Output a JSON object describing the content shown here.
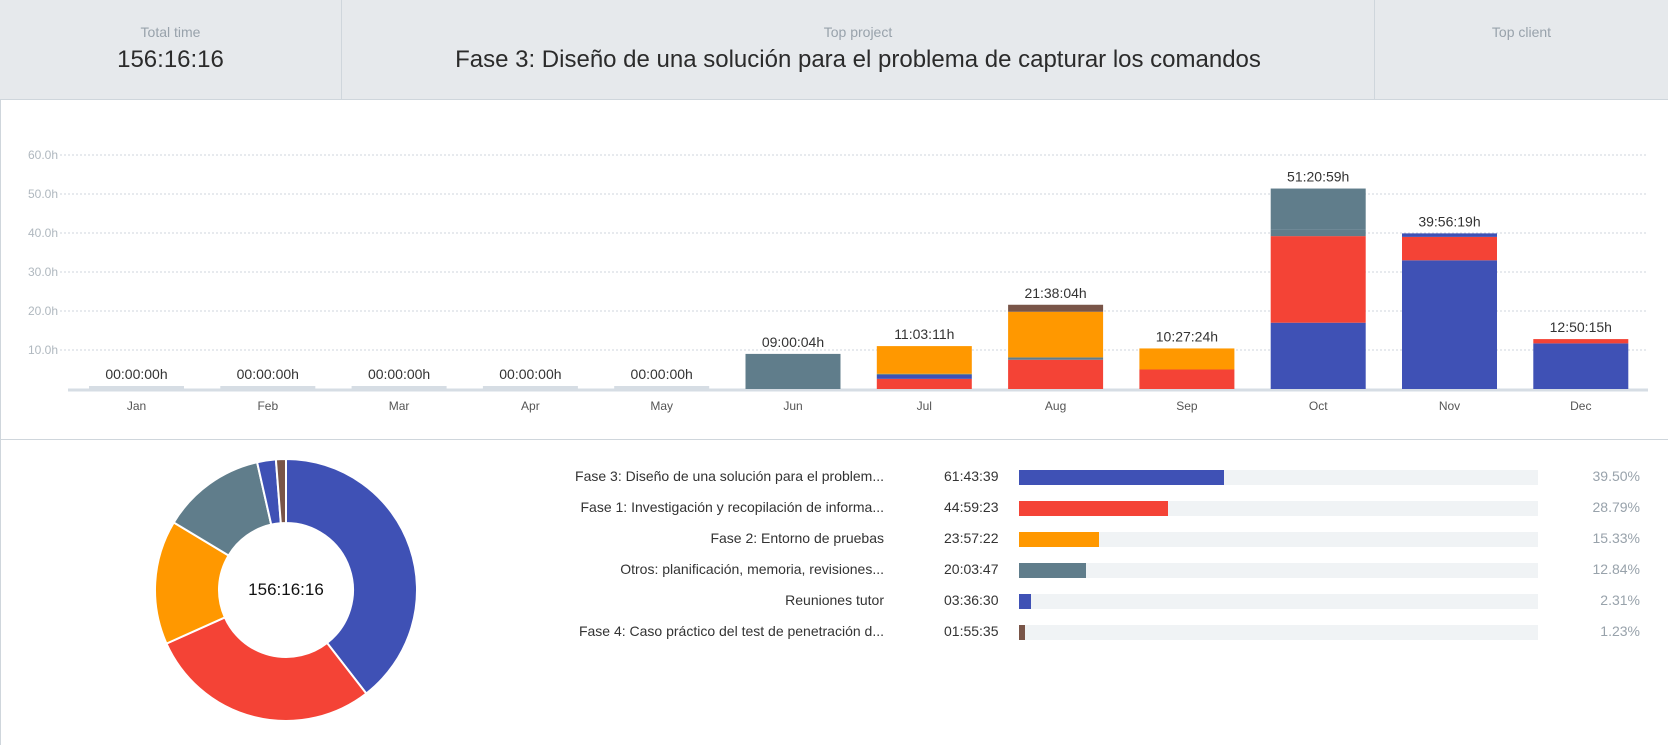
{
  "summary": {
    "total_label": "Total time",
    "total_value": "156:16:16",
    "project_label": "Top project",
    "project_value": "Fase 3: Diseño de una solución para el problema de capturar los comandos",
    "client_label": "Top client",
    "client_value": ""
  },
  "colors": {
    "blue": "#3f51b5",
    "red": "#f44336",
    "orange": "#ff9800",
    "slate": "#607d8b",
    "brown": "#795548",
    "empty": "#d6dde4"
  },
  "chart_data": [
    {
      "type": "bar",
      "stacked": true,
      "categories": [
        "Jan",
        "Feb",
        "Mar",
        "Apr",
        "May",
        "Jun",
        "Jul",
        "Aug",
        "Sep",
        "Oct",
        "Nov",
        "Dec"
      ],
      "totals": [
        "00:00:00h",
        "00:00:00h",
        "00:00:00h",
        "00:00:00h",
        "00:00:00h",
        "09:00:04h",
        "11:03:11h",
        "21:38:04h",
        "10:27:24h",
        "51:20:59h",
        "39:56:19h",
        "12:50:15h"
      ],
      "series": [
        {
          "color": "#3f51b5",
          "values": [
            0,
            0,
            0,
            0,
            0,
            0,
            0,
            0,
            0,
            17.0,
            33.0,
            11.7
          ]
        },
        {
          "color": "#f44336",
          "values": [
            0,
            0,
            0,
            0,
            0,
            0,
            2.6,
            7.5,
            5.0,
            22.2,
            6.0,
            1.1
          ]
        },
        {
          "color": "#3f51b5",
          "values": [
            0,
            0,
            0,
            0,
            0,
            0,
            1.0,
            0,
            0,
            0,
            0,
            0
          ]
        },
        {
          "color": "#607d8b",
          "values": [
            0,
            0,
            0,
            0,
            0,
            0,
            0.3,
            0.6,
            0,
            1.6,
            0,
            0
          ]
        },
        {
          "color": "#ff9800",
          "values": [
            0,
            0,
            0,
            0,
            0,
            0,
            7.1,
            11.7,
            5.4,
            0,
            0,
            0
          ]
        },
        {
          "color": "#607d8b",
          "values": [
            0,
            0,
            0,
            0,
            0,
            9.0,
            0,
            0,
            0,
            10.6,
            0,
            0
          ]
        },
        {
          "color": "#3f51b5",
          "values": [
            0,
            0,
            0,
            0,
            0,
            0,
            0,
            0,
            0,
            0,
            0.9,
            0
          ]
        },
        {
          "color": "#795548",
          "values": [
            0,
            0,
            0,
            0,
            0,
            0,
            0,
            1.8,
            0,
            0,
            0,
            0
          ]
        }
      ],
      "yticks": [
        "10.0h",
        "20.0h",
        "30.0h",
        "40.0h",
        "50.0h",
        "60.0h"
      ],
      "ylim": [
        0,
        60
      ],
      "grid": true
    },
    {
      "type": "pie",
      "center_label": "156:16:16",
      "slices": [
        {
          "label": "Fase 3: Diseño de una solución para el problem...",
          "value": 39.5,
          "color": "#3f51b5"
        },
        {
          "label": "Fase 1: Investigación y recopilación de informa...",
          "value": 28.79,
          "color": "#f44336"
        },
        {
          "label": "Fase 2: Entorno de pruebas",
          "value": 15.33,
          "color": "#ff9800"
        },
        {
          "label": "Otros: planificación, memoria, revisiones...",
          "value": 12.84,
          "color": "#607d8b"
        },
        {
          "label": "Reuniones tutor",
          "value": 2.31,
          "color": "#3f51b5"
        },
        {
          "label": "Fase 4: Caso práctico del test de penetración d...",
          "value": 1.23,
          "color": "#795548"
        }
      ]
    }
  ],
  "projects": [
    {
      "name": "Fase 3: Diseño de una solución para el problem...",
      "time": "61:43:39",
      "percent": "39.50%",
      "fraction": 0.395,
      "color": "#3f51b5"
    },
    {
      "name": "Fase 1: Investigación y recopilación de informa...",
      "time": "44:59:23",
      "percent": "28.79%",
      "fraction": 0.2879,
      "color": "#f44336"
    },
    {
      "name": "Fase 2: Entorno de pruebas",
      "time": "23:57:22",
      "percent": "15.33%",
      "fraction": 0.1533,
      "color": "#ff9800"
    },
    {
      "name": "Otros: planificación, memoria, revisiones...",
      "time": "20:03:47",
      "percent": "12.84%",
      "fraction": 0.1284,
      "color": "#607d8b"
    },
    {
      "name": "Reuniones tutor",
      "time": "03:36:30",
      "percent": "2.31%",
      "fraction": 0.0231,
      "color": "#3f51b5"
    },
    {
      "name": "Fase 4: Caso práctico del test de penetración d...",
      "time": "01:55:35",
      "percent": "1.23%",
      "fraction": 0.0123,
      "color": "#795548"
    }
  ]
}
